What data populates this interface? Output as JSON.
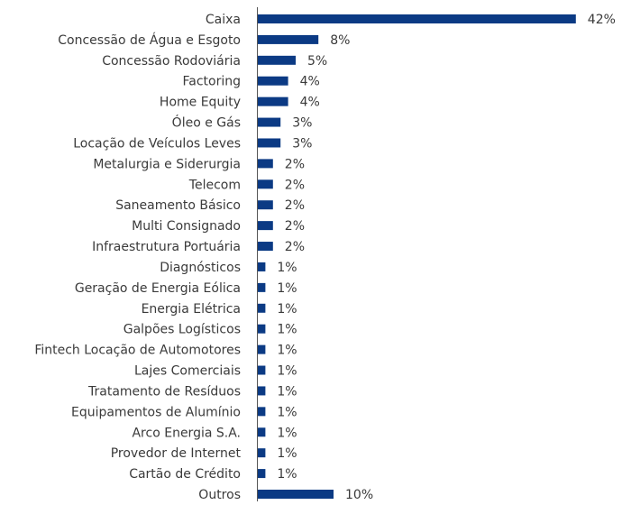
{
  "chart_data": {
    "type": "barh",
    "color": "#0b3a84",
    "categories": [
      "Caixa",
      "Concessão de Água e Esgoto",
      "Concessão Rodoviária",
      "Factoring",
      "Home Equity",
      "Óleo e Gás",
      "Locação de Veículos Leves",
      "Metalurgia e Siderurgia",
      "Telecom",
      "Saneamento Básico",
      "Multi Consignado",
      "Infraestrutura Portuária",
      "Diagnósticos",
      "Geração de Energia Eólica",
      "Energia Elétrica",
      "Galpões Logísticos",
      "Fintech Locação de Automotores",
      "Lajes Comerciais",
      "Tratamento de Resíduos",
      "Equipamentos de Alumínio",
      "Arco Energia S.A.",
      "Provedor de Internet",
      "Cartão de Crédito",
      "Outros"
    ],
    "values": [
      42,
      8,
      5,
      4,
      4,
      3,
      3,
      2,
      2,
      2,
      2,
      2,
      1,
      1,
      1,
      1,
      1,
      1,
      1,
      1,
      1,
      1,
      1,
      10
    ],
    "value_labels": [
      "42%",
      "8%",
      "5%",
      "4%",
      "4%",
      "3%",
      "3%",
      "2%",
      "2%",
      "2%",
      "2%",
      "2%",
      "1%",
      "1%",
      "1%",
      "1%",
      "1%",
      "1%",
      "1%",
      "1%",
      "1%",
      "1%",
      "1%",
      "10%"
    ]
  }
}
